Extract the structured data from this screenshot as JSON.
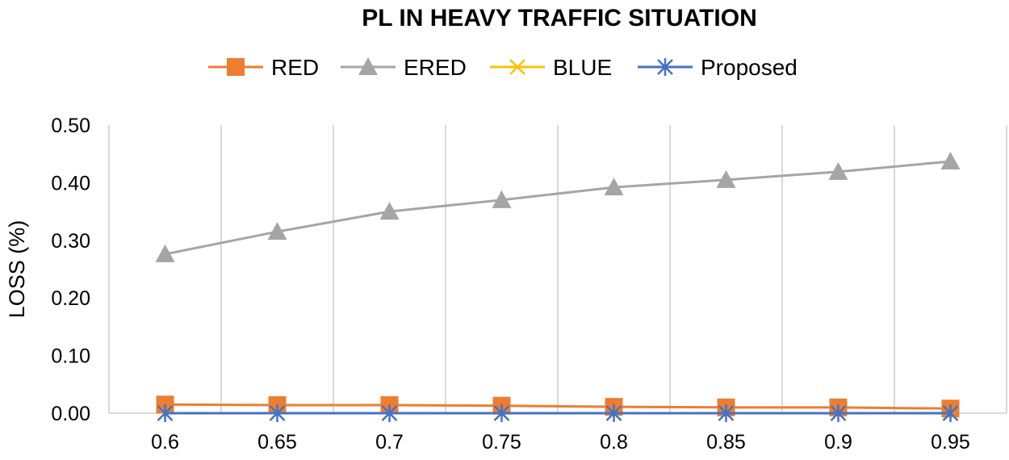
{
  "chart_data": {
    "type": "line",
    "title": "PL IN HEAVY TRAFFIC SITUATION",
    "xlabel": "",
    "ylabel": "LOSS (%)",
    "categories": [
      "0.6",
      "0.65",
      "0.7",
      "0.75",
      "0.8",
      "0.85",
      "0.9",
      "0.95"
    ],
    "ylim": [
      0,
      0.5
    ],
    "yticks": [
      "0.00",
      "0.10",
      "0.20",
      "0.30",
      "0.40",
      "0.50"
    ],
    "grid": "vertical",
    "legend": "top",
    "series": [
      {
        "name": "RED",
        "color": "#ED7D31",
        "marker": "square",
        "values": [
          0.015,
          0.014,
          0.014,
          0.013,
          0.011,
          0.01,
          0.01,
          0.008
        ]
      },
      {
        "name": "ERED",
        "color": "#A5A5A5",
        "marker": "triangle",
        "values": [
          0.276,
          0.315,
          0.35,
          0.37,
          0.392,
          0.405,
          0.419,
          0.437
        ]
      },
      {
        "name": "BLUE",
        "color": "#FFC000",
        "marker": "x",
        "values": [
          0,
          0,
          0,
          0,
          0,
          0,
          0,
          0
        ]
      },
      {
        "name": "Proposed",
        "color": "#4472C4",
        "marker": "star",
        "values": [
          0,
          0,
          0,
          0,
          0,
          0,
          0,
          0
        ]
      }
    ]
  }
}
